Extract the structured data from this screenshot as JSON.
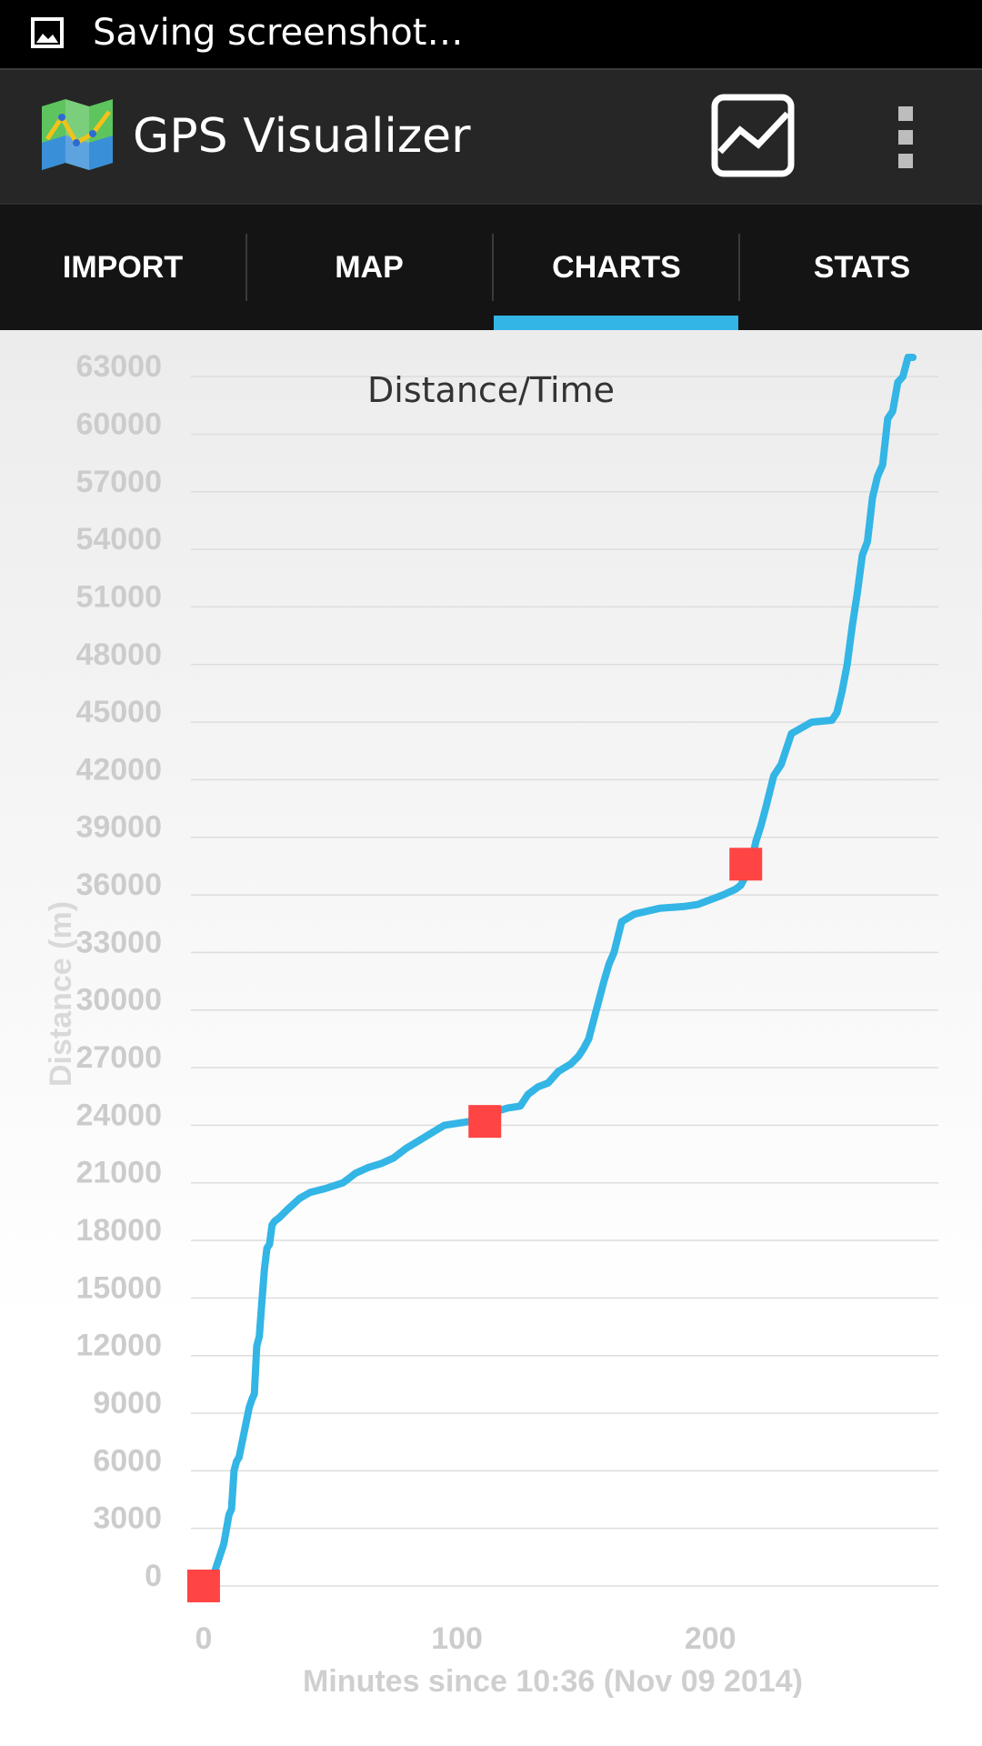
{
  "status_bar": {
    "text": "Saving screenshot…"
  },
  "app": {
    "title": "GPS Visualizer"
  },
  "tabs": [
    {
      "label": "IMPORT",
      "selected": false
    },
    {
      "label": "MAP",
      "selected": false
    },
    {
      "label": "CHARTS",
      "selected": true
    },
    {
      "label": "STATS",
      "selected": false
    }
  ],
  "colors": {
    "accent": "#33b5e5",
    "line": "#33b5e5",
    "marker": "#ff4444"
  },
  "chart_data": {
    "type": "line",
    "title": "Distance/Time",
    "xlabel": "Minutes since 10:36 (Nov 09 2014)",
    "ylabel": "Distance (m)",
    "xlim": [
      -5,
      290
    ],
    "ylim": [
      0,
      64000
    ],
    "x_ticks": [
      0,
      100,
      200
    ],
    "y_ticks": [
      0,
      3000,
      6000,
      9000,
      12000,
      15000,
      18000,
      21000,
      24000,
      27000,
      30000,
      33000,
      36000,
      39000,
      42000,
      45000,
      48000,
      51000,
      54000,
      57000,
      60000,
      63000
    ],
    "grid": true,
    "series": [
      {
        "x": [
          0,
          4,
          8,
          10,
          11,
          12,
          13,
          14,
          16,
          18,
          19,
          20,
          21,
          22,
          23,
          24,
          25,
          26,
          27,
          28,
          30,
          33,
          38,
          42,
          48,
          55,
          57,
          60,
          65,
          70,
          75,
          80,
          85,
          90,
          95,
          100,
          105,
          110,
          115,
          120,
          125,
          128,
          132,
          136,
          140,
          145,
          148,
          150,
          152,
          155,
          158,
          160,
          162,
          165,
          170,
          180,
          190,
          195,
          205,
          210,
          212,
          214,
          216,
          218,
          220,
          222,
          225,
          228,
          232,
          240,
          248,
          250,
          252,
          254,
          256,
          258,
          260,
          262,
          264,
          266,
          268,
          270,
          272,
          274,
          276,
          278,
          280
        ],
        "y": [
          0,
          600,
          2200,
          3700,
          4000,
          6000,
          6500,
          6700,
          8000,
          9300,
          9700,
          10000,
          12500,
          13000,
          14800,
          16500,
          17600,
          17800,
          18800,
          19000,
          19200,
          19600,
          20200,
          20500,
          20700,
          21000,
          21200,
          21500,
          21800,
          22000,
          22300,
          22800,
          23200,
          23600,
          24000,
          24100,
          24200,
          24300,
          24700,
          24900,
          25000,
          25600,
          26000,
          26200,
          26800,
          27200,
          27600,
          28000,
          28500,
          30000,
          31500,
          32400,
          33000,
          34600,
          35000,
          35300,
          35400,
          35500,
          36000,
          36300,
          36500,
          37000,
          37600,
          38800,
          39600,
          40600,
          42200,
          42800,
          44400,
          45000,
          45100,
          45500,
          46600,
          48000,
          50000,
          51700,
          53700,
          54400,
          56700,
          57800,
          58400,
          60800,
          61200,
          62700,
          63000,
          64000,
          64000
        ]
      }
    ],
    "markers": [
      {
        "x": 0,
        "y": 0
      },
      {
        "x": 111,
        "y": 24200
      },
      {
        "x": 214,
        "y": 37600
      }
    ]
  }
}
